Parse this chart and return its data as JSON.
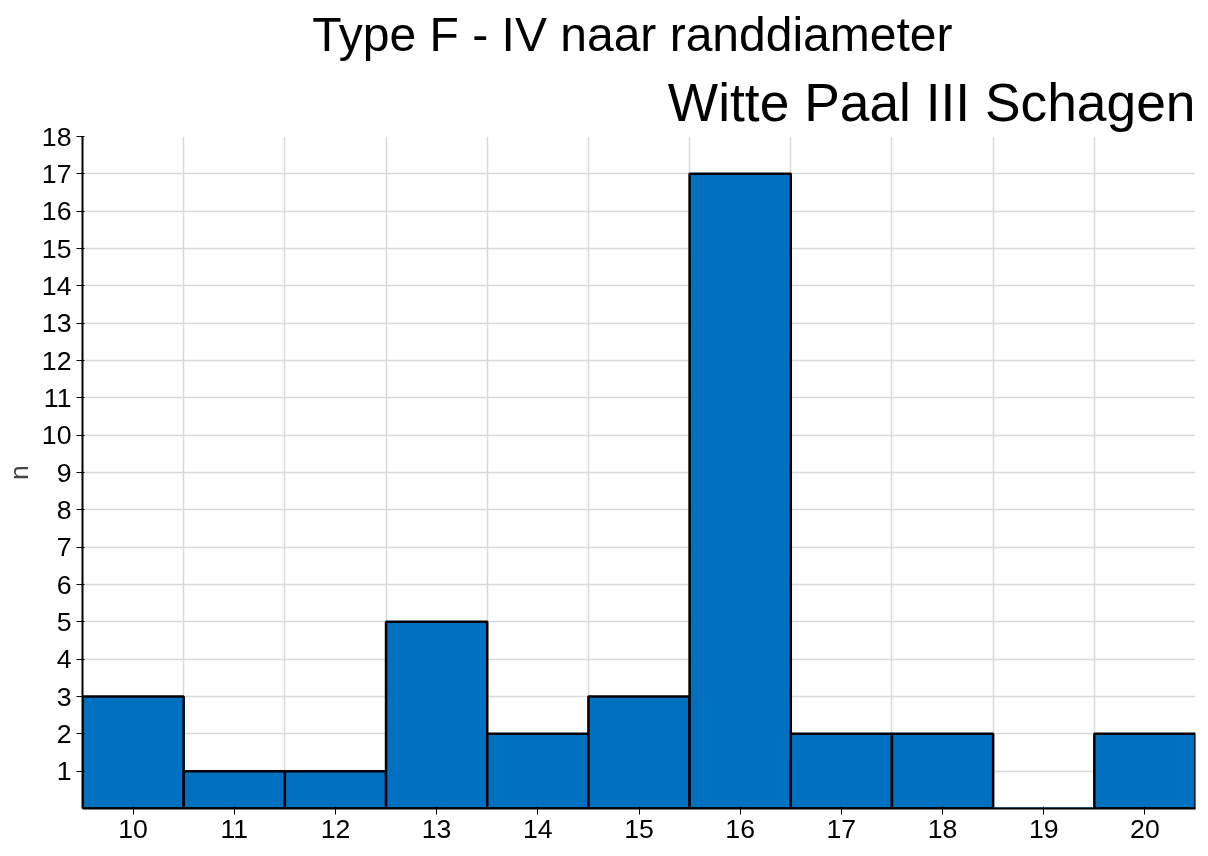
{
  "chart_data": {
    "type": "bar",
    "title": "Type F - IV  naar randdiameter",
    "subtitle": "Witte Paal III Schagen",
    "ylabel": "n",
    "categories": [
      "10",
      "11",
      "12",
      "13",
      "14",
      "15",
      "16",
      "17",
      "18",
      "19",
      "20"
    ],
    "values": [
      3,
      1,
      1,
      5,
      2,
      3,
      17,
      2,
      2,
      0,
      2
    ],
    "color": "#0070c0",
    "ylim": [
      0,
      18
    ],
    "yticks": [
      1,
      2,
      3,
      4,
      5,
      6,
      7,
      8,
      9,
      10,
      11,
      12,
      13,
      14,
      15,
      16,
      17,
      18
    ],
    "grid": true
  }
}
